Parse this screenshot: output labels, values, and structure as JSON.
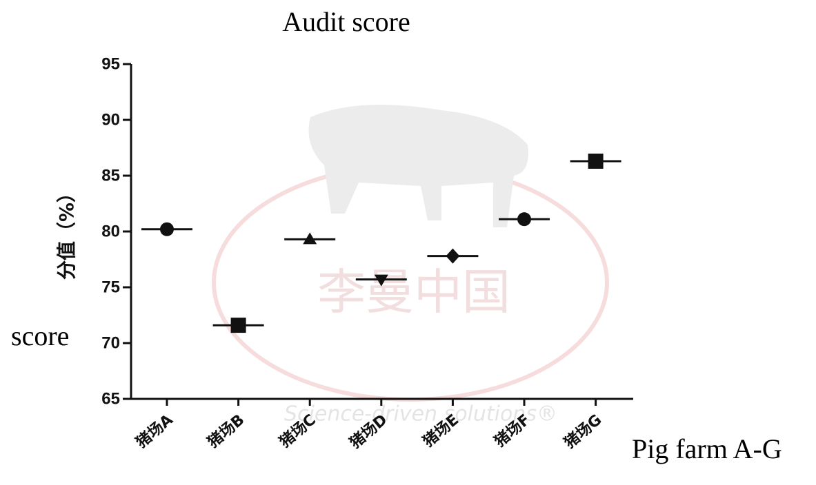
{
  "chart_data": {
    "type": "scatter",
    "title": "Audit score",
    "y_label": "分值（%）",
    "y_note": "score",
    "x_label": "Pig farm A-G",
    "watermark": [
      "李曼中国",
      "Science-driven solutions®"
    ],
    "categories": [
      "猪场A",
      "猪场B",
      "猪场C",
      "猪场D",
      "猪场E",
      "猪场F",
      "猪场G"
    ],
    "values": [
      80.2,
      71.6,
      79.3,
      75.7,
      77.8,
      81.1,
      86.3
    ],
    "markers": [
      "circle",
      "square",
      "triangle-up",
      "triangle-down",
      "diamond",
      "circle",
      "square"
    ],
    "color": "#111111",
    "ylim": [
      65,
      95
    ],
    "yticks": [
      65,
      70,
      75,
      80,
      85,
      90,
      95
    ]
  }
}
